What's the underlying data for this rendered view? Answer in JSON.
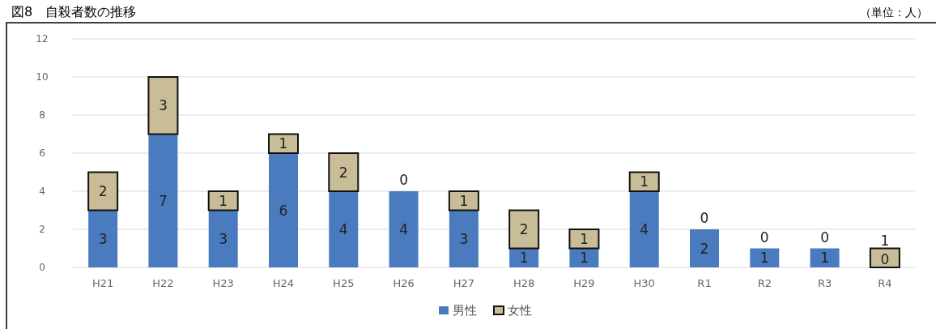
{
  "chart_data": {
    "type": "bar",
    "stacked": true,
    "title": "図8　自殺者数の推移",
    "annotations": [
      "（単位：人）"
    ],
    "categories": [
      "H21",
      "H22",
      "H23",
      "H24",
      "H25",
      "H26",
      "H27",
      "H28",
      "H29",
      "H30",
      "R1",
      "R2",
      "R3",
      "R4"
    ],
    "series": [
      {
        "name": "男性",
        "color": "#4a7bbf",
        "values": [
          3,
          7,
          3,
          6,
          4,
          4,
          3,
          1,
          1,
          4,
          2,
          1,
          1,
          0
        ]
      },
      {
        "name": "女性",
        "color": "#c9bd98",
        "values": [
          2,
          3,
          1,
          1,
          2,
          0,
          1,
          2,
          1,
          1,
          0,
          0,
          0,
          1
        ]
      }
    ],
    "ylim": [
      0,
      12
    ],
    "yticks": [
      0,
      2,
      4,
      6,
      8,
      10,
      12
    ],
    "grid": "y",
    "legend": "bottom",
    "data_labels": true
  }
}
